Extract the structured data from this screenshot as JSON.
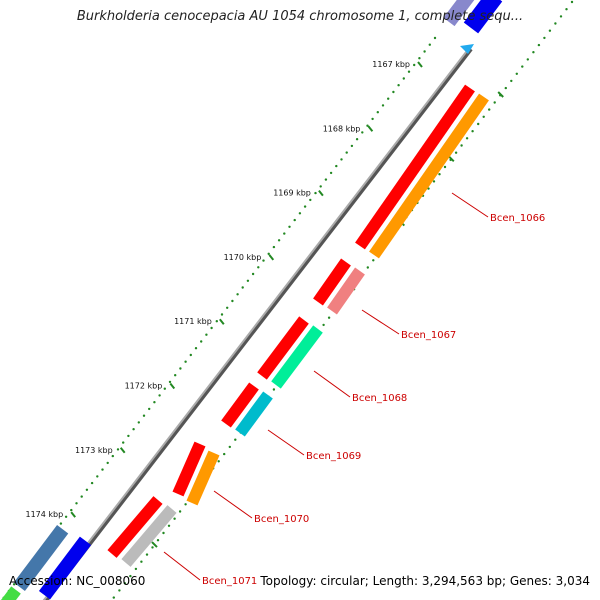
{
  "title": "Burkholderia cenocepacia AU 1054 chromosome 1, complete sequ...",
  "footer": {
    "accession": "Accession: NC_008060",
    "info": "Topology: circular; Length: 3,294,563 bp; Genes: 3,034"
  },
  "ticks": [
    {
      "label": "1167 kbp",
      "kbp": 1167
    },
    {
      "label": "1168 kbp",
      "kbp": 1168
    },
    {
      "label": "1169 kbp",
      "kbp": 1169
    },
    {
      "label": "1170 kbp",
      "kbp": 1170
    },
    {
      "label": "1171 kbp",
      "kbp": 1171
    },
    {
      "label": "1172 kbp",
      "kbp": 1172
    },
    {
      "label": "1173 kbp",
      "kbp": 1173
    },
    {
      "label": "1174 kbp",
      "kbp": 1174
    }
  ],
  "labeled_genes": [
    {
      "name": "Bcen_1066",
      "outer_color": "#ff0000",
      "inner_color": "#ff9900"
    },
    {
      "name": "Bcen_1067",
      "outer_color": "#ff0000",
      "inner_color": "#f08080"
    },
    {
      "name": "Bcen_1068",
      "outer_color": "#ff0000",
      "inner_color": "#00ee99"
    },
    {
      "name": "Bcen_1069",
      "outer_color": "#ff0000",
      "inner_color": "#00bbcc"
    },
    {
      "name": "Bcen_1070",
      "outer_color": "#ff0000",
      "inner_color": "#ff9900"
    },
    {
      "name": "Bcen_1071",
      "outer_color": "#ff0000",
      "inner_color": "#bbbbbb"
    }
  ],
  "colors": {
    "backbone": "#888888",
    "tick": "#228822",
    "label": "#cc0000",
    "blue_feature": "#0000ee",
    "steel_feature": "#4477aa"
  }
}
